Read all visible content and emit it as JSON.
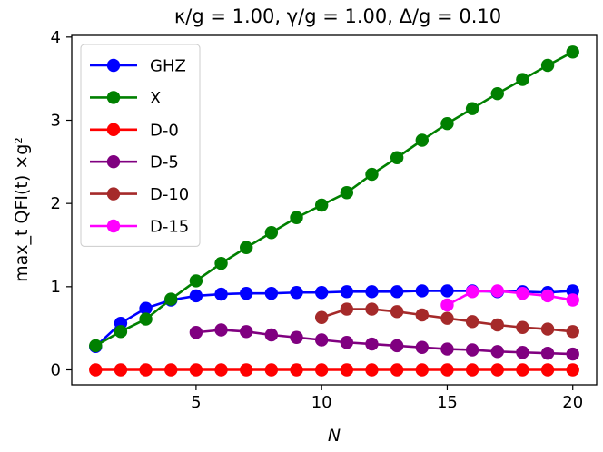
{
  "chart_data": {
    "type": "line",
    "title": "κ/g = 1.00, γ/g = 1.00, Δ/g = 0.10",
    "xlabel": "N",
    "ylabel": "max_t QFI(t) ×g²",
    "xlim": [
      0.05,
      20.95
    ],
    "ylim": [
      -0.18,
      4.02
    ],
    "xticks": [
      5,
      10,
      15,
      20
    ],
    "yticks": [
      0,
      1,
      2,
      3,
      4
    ],
    "grid": false,
    "legend_position": "upper-left",
    "series": [
      {
        "name": "GHZ",
        "color": "#0000ff",
        "x": [
          1,
          2,
          3,
          4,
          5,
          6,
          7,
          8,
          9,
          10,
          11,
          12,
          13,
          14,
          15,
          16,
          17,
          18,
          19,
          20
        ],
        "y": [
          0.28,
          0.56,
          0.74,
          0.84,
          0.89,
          0.91,
          0.92,
          0.92,
          0.93,
          0.93,
          0.94,
          0.94,
          0.94,
          0.95,
          0.95,
          0.95,
          0.94,
          0.94,
          0.93,
          0.95
        ]
      },
      {
        "name": "X",
        "color": "#008000",
        "x": [
          1,
          2,
          3,
          4,
          5,
          6,
          7,
          8,
          9,
          10,
          11,
          12,
          13,
          14,
          15,
          16,
          17,
          18,
          19,
          20
        ],
        "y": [
          0.29,
          0.46,
          0.61,
          0.85,
          1.07,
          1.28,
          1.47,
          1.65,
          1.83,
          1.98,
          2.13,
          2.35,
          2.55,
          2.76,
          2.96,
          3.14,
          3.32,
          3.49,
          3.66,
          3.82
        ]
      },
      {
        "name": "D-0",
        "color": "#ff0000",
        "x": [
          1,
          2,
          3,
          4,
          5,
          6,
          7,
          8,
          9,
          10,
          11,
          12,
          13,
          14,
          15,
          16,
          17,
          18,
          19,
          20
        ],
        "y": [
          0.0,
          0.0,
          0.0,
          0.0,
          0.0,
          0.0,
          0.0,
          0.0,
          0.0,
          0.0,
          0.0,
          0.0,
          0.0,
          0.0,
          0.0,
          0.0,
          0.0,
          0.0,
          0.0,
          0.0
        ]
      },
      {
        "name": "D-5",
        "color": "#800080",
        "x": [
          5,
          6,
          7,
          8,
          9,
          10,
          11,
          12,
          13,
          14,
          15,
          16,
          17,
          18,
          19,
          20
        ],
        "y": [
          0.45,
          0.48,
          0.46,
          0.42,
          0.39,
          0.36,
          0.33,
          0.31,
          0.29,
          0.27,
          0.25,
          0.24,
          0.22,
          0.21,
          0.2,
          0.19
        ]
      },
      {
        "name": "D-10",
        "color": "#a52a2a",
        "x": [
          10,
          11,
          12,
          13,
          14,
          15,
          16,
          17,
          18,
          19,
          20
        ],
        "y": [
          0.63,
          0.73,
          0.73,
          0.7,
          0.66,
          0.62,
          0.58,
          0.54,
          0.51,
          0.49,
          0.46
        ]
      },
      {
        "name": "D-15",
        "color": "#ff00ff",
        "x": [
          15,
          16,
          17,
          18,
          19,
          20
        ],
        "y": [
          0.78,
          0.94,
          0.95,
          0.92,
          0.89,
          0.84
        ]
      }
    ]
  }
}
